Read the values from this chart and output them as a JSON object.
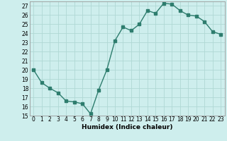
{
  "x": [
    0,
    1,
    2,
    3,
    4,
    5,
    6,
    7,
    8,
    9,
    10,
    11,
    12,
    13,
    14,
    15,
    16,
    17,
    18,
    19,
    20,
    21,
    22,
    23
  ],
  "y": [
    20.0,
    18.6,
    18.0,
    17.5,
    16.6,
    16.5,
    16.3,
    15.2,
    17.8,
    20.0,
    23.2,
    24.7,
    24.3,
    25.0,
    26.5,
    26.2,
    27.3,
    27.2,
    26.5,
    26.0,
    25.9,
    25.3,
    24.2,
    23.9
  ],
  "xlabel": "Humidex (Indice chaleur)",
  "xlim": [
    -0.5,
    23.5
  ],
  "ylim": [
    15,
    27.5
  ],
  "yticks": [
    15,
    16,
    17,
    18,
    19,
    20,
    21,
    22,
    23,
    24,
    25,
    26,
    27
  ],
  "xticks": [
    0,
    1,
    2,
    3,
    4,
    5,
    6,
    7,
    8,
    9,
    10,
    11,
    12,
    13,
    14,
    15,
    16,
    17,
    18,
    19,
    20,
    21,
    22,
    23
  ],
  "line_color": "#2e7d6e",
  "bg_color": "#ceeeed",
  "grid_color": "#b0d8d4",
  "marker": "s",
  "marker_size": 2.5,
  "line_width": 1.0,
  "tick_fontsize": 5.5,
  "xlabel_fontsize": 6.5
}
